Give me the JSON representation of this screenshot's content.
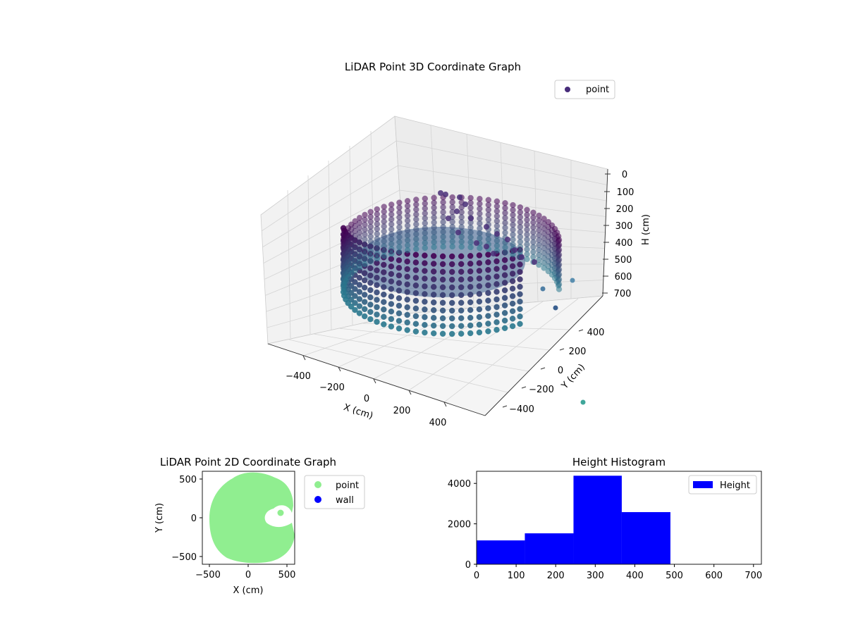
{
  "chart_data": [
    {
      "type": "scatter",
      "projection": "3d",
      "title": "LiDAR Point 3D Coordinate Graph",
      "xlabel": "X (cm)",
      "ylabel": "Y (cm)",
      "zlabel": "H (cm)",
      "xticks": [
        "−400",
        "−200",
        "0",
        "200",
        "400"
      ],
      "yticks": [
        "−400",
        "−200",
        "0",
        "200",
        "400"
      ],
      "zticks": [
        "0",
        "100",
        "200",
        "300",
        "400",
        "500",
        "600",
        "700"
      ],
      "xlim": [
        -550,
        550
      ],
      "ylim": [
        -550,
        550
      ],
      "zlim": [
        0,
        720
      ],
      "z_inverted": true,
      "legend": {
        "placement": "upper-right",
        "entries": [
          {
            "label": "point",
            "color": "#472c7a"
          }
        ]
      },
      "colormap": "viridis",
      "grid": true,
      "series": [
        {
          "name": "point",
          "shape": "partial circular wall of points, radius approx 450 cm, heights 0-480 cm, with an inner cluster near x 250-400, y 50-300"
        }
      ]
    },
    {
      "type": "scatter",
      "title": "LiDAR Point 2D Coordinate Graph",
      "xlabel": "X (cm)",
      "ylabel": "Y (cm)",
      "xticks": [
        "−500",
        "0",
        "500"
      ],
      "yticks": [
        "−500",
        "0",
        "500"
      ],
      "xlim": [
        -600,
        600
      ],
      "ylim": [
        -600,
        600
      ],
      "legend": {
        "placement": "outside-right",
        "entries": [
          {
            "label": "point",
            "color": "#90ee90"
          },
          {
            "label": "wall",
            "color": "#0000ff"
          }
        ]
      },
      "series": [
        {
          "name": "point",
          "color": "#90ee90",
          "shape": "filled disc, radius approx 500 cm, with a hole near x 300-500, y 0-150"
        }
      ]
    },
    {
      "type": "bar",
      "title": "Height Histogram",
      "xlabel": "",
      "ylabel": "",
      "xticks": [
        "0",
        "100",
        "200",
        "300",
        "400",
        "500",
        "600",
        "700"
      ],
      "yticks": [
        "0",
        "2000",
        "4000"
      ],
      "xlim": [
        0,
        720
      ],
      "ylim": [
        0,
        4600
      ],
      "bin_edges": [
        0,
        122,
        245,
        367,
        490,
        612,
        735
      ],
      "values": [
        1180,
        1530,
        4380,
        2580,
        0,
        0
      ],
      "color": "#0000ff",
      "legend": {
        "placement": "upper-right",
        "entries": [
          {
            "label": "Height",
            "color": "#0000ff"
          }
        ]
      }
    }
  ]
}
